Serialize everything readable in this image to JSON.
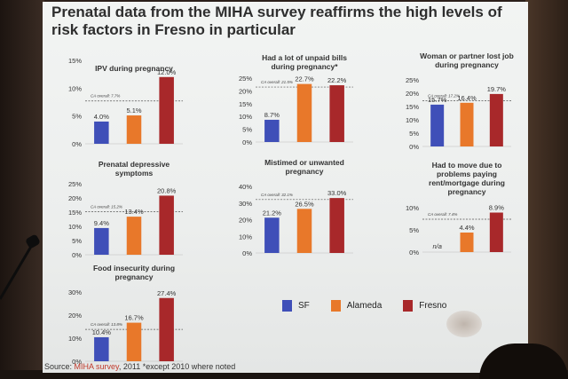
{
  "slide_title": "Prenatal data from the MIHA survey reaffirms the high levels of risk factors in Fresno in particular",
  "footer": {
    "source_prefix": "Source: ",
    "source_link": "MIHA survey",
    "source_suffix": ", 2011 *except 2010 where noted"
  },
  "legend": [
    {
      "name": "SF",
      "color": "#3f4fb8"
    },
    {
      "name": "Alameda",
      "color": "#e8782a"
    },
    {
      "name": "Fresno",
      "color": "#a8282a"
    }
  ],
  "chart_data": [
    {
      "type": "bar",
      "title": [
        "IPV during pregnancy"
      ],
      "categories": [
        "SF",
        "Alameda",
        "Fresno"
      ],
      "values": [
        4.0,
        5.1,
        12.0
      ],
      "value_labels": [
        "4.0%",
        "5.1%",
        "12.0%"
      ],
      "ylim": [
        0,
        15
      ],
      "yticks": [
        "0%",
        "5%",
        "10%",
        "15%"
      ],
      "reference": {
        "label": "CA overall: 7.7%",
        "value": 7.7
      }
    },
    {
      "type": "bar",
      "title": [
        "Had a lot of unpaid bills",
        "during pregnancy*"
      ],
      "categories": [
        "SF",
        "Alameda",
        "Fresno"
      ],
      "values": [
        8.7,
        22.7,
        22.2
      ],
      "value_labels": [
        "8.7%",
        "22.7%",
        "22.2%"
      ],
      "ylim": [
        0,
        25
      ],
      "yticks": [
        "0%",
        "5%",
        "10%",
        "15%",
        "20%",
        "25%"
      ],
      "reference": {
        "label": "CA overall: 21.5%",
        "value": 21.5
      }
    },
    {
      "type": "bar",
      "title": [
        "Woman or partner lost job",
        "during pregnancy"
      ],
      "categories": [
        "SF",
        "Alameda",
        "Fresno"
      ],
      "values": [
        15.7,
        16.4,
        19.7
      ],
      "value_labels": [
        "15.7%",
        "16.4%",
        "19.7%"
      ],
      "ylim": [
        0,
        25
      ],
      "yticks": [
        "0%",
        "5%",
        "10%",
        "15%",
        "20%",
        "25%"
      ],
      "reference": {
        "label": "CA overall: 17.2%",
        "value": 17.2
      }
    },
    {
      "type": "bar",
      "title": [
        "Prenatal depressive",
        "symptoms"
      ],
      "categories": [
        "SF",
        "Alameda",
        "Fresno"
      ],
      "values": [
        9.4,
        13.4,
        20.8
      ],
      "value_labels": [
        "9.4%",
        "13.4%",
        "20.8%"
      ],
      "ylim": [
        0,
        25
      ],
      "yticks": [
        "0%",
        "5%",
        "10%",
        "15%",
        "20%",
        "25%"
      ],
      "reference": {
        "label": "CA overall: 15.2%",
        "value": 15.2
      }
    },
    {
      "type": "bar",
      "title": [
        "Mistimed or unwanted",
        "pregnancy"
      ],
      "categories": [
        "SF",
        "Alameda",
        "Fresno"
      ],
      "values": [
        21.2,
        26.5,
        33.0
      ],
      "value_labels": [
        "21.2%",
        "26.5%",
        "33.0%"
      ],
      "ylim": [
        0,
        40
      ],
      "yticks": [
        "0%",
        "10%",
        "20%",
        "30%",
        "40%"
      ],
      "reference": {
        "label": "CA overall: 32.1%",
        "value": 32.1
      }
    },
    {
      "type": "bar",
      "title": [
        "Had to move due to",
        "problems paying",
        "rent/mortgage during",
        "pregnancy"
      ],
      "categories": [
        "SF",
        "Alameda",
        "Fresno"
      ],
      "values": [
        null,
        4.4,
        8.9
      ],
      "value_labels": [
        "n/a",
        "4.4%",
        "8.9%"
      ],
      "ylim": [
        0,
        10
      ],
      "yticks": [
        "0%",
        "5%",
        "10%"
      ],
      "reference": {
        "label": "CA overall: 7.4%",
        "value": 7.4
      }
    },
    {
      "type": "bar",
      "title": [
        "Food insecurity during",
        "pregnancy"
      ],
      "categories": [
        "SF",
        "Alameda",
        "Fresno"
      ],
      "values": [
        10.4,
        16.7,
        27.4
      ],
      "value_labels": [
        "10.4%",
        "16.7%",
        "27.4%"
      ],
      "ylim": [
        0,
        30
      ],
      "yticks": [
        "0%",
        "10%",
        "20%",
        "30%"
      ],
      "reference": {
        "label": "CA overall: 13.8%",
        "value": 13.8
      }
    }
  ]
}
